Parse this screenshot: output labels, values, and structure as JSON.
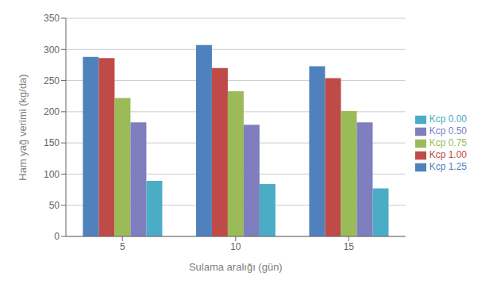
{
  "chart_data": {
    "type": "bar",
    "categories": [
      "5",
      "10",
      "15"
    ],
    "series": [
      {
        "name": "Kcp 1.25",
        "color": "#4F81BD",
        "values": [
          288,
          307,
          273
        ]
      },
      {
        "name": "Kcp 1.00",
        "color": "#BE4B48",
        "values": [
          286,
          270,
          254
        ]
      },
      {
        "name": "Kcp 0.75",
        "color": "#9BBB59",
        "values": [
          222,
          233,
          201
        ]
      },
      {
        "name": "Kcp 0.50",
        "color": "#7F7FBF",
        "values": [
          183,
          179,
          183
        ]
      },
      {
        "name": "Kcp 0.00",
        "color": "#4BACC6",
        "values": [
          89,
          84,
          77
        ]
      }
    ],
    "xlabel": "Sulama aralığı (gün)",
    "ylabel": "Ham yağ verimi (kg/da)",
    "ylim": [
      0,
      350
    ],
    "yticks": [
      0,
      50,
      100,
      150,
      200,
      250,
      300,
      350
    ],
    "grid": true,
    "legend": "right"
  }
}
